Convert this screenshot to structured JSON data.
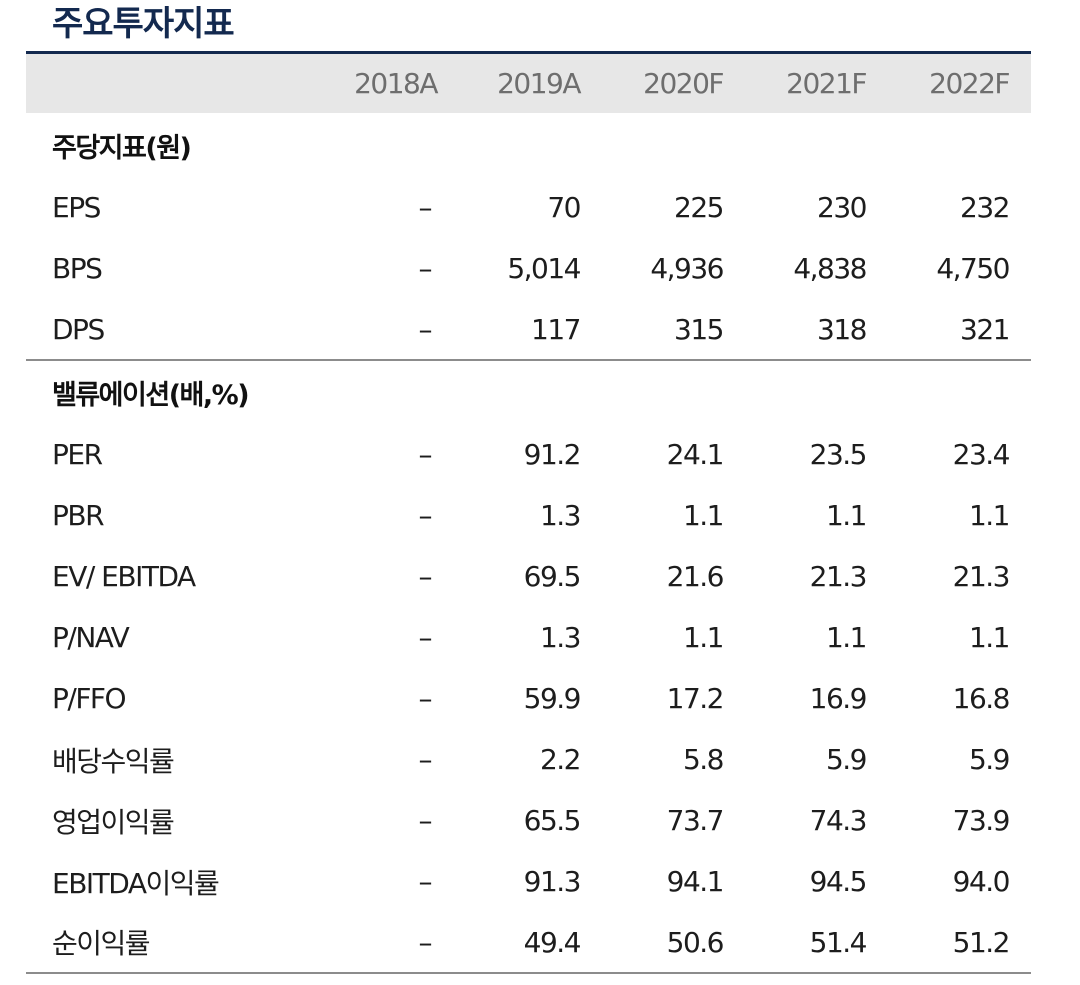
{
  "title": "주요투자지표",
  "columns": [
    "2018A",
    "2019A",
    "2020F",
    "2021F",
    "2022F"
  ],
  "sections": [
    {
      "heading": "주당지표(원)",
      "rows": [
        {
          "label": "EPS",
          "values": [
            "–",
            "70",
            "225",
            "230",
            "232"
          ]
        },
        {
          "label": "BPS",
          "values": [
            "–",
            "5,014",
            "4,936",
            "4,838",
            "4,750"
          ]
        },
        {
          "label": "DPS",
          "values": [
            "–",
            "117",
            "315",
            "318",
            "321"
          ]
        }
      ]
    },
    {
      "heading": "밸류에이션(배,%)",
      "rows": [
        {
          "label": "PER",
          "values": [
            "–",
            "91.2",
            "24.1",
            "23.5",
            "23.4"
          ]
        },
        {
          "label": "PBR",
          "values": [
            "–",
            "1.3",
            "1.1",
            "1.1",
            "1.1"
          ]
        },
        {
          "label": "EV/ EBITDA",
          "values": [
            "–",
            "69.5",
            "21.6",
            "21.3",
            "21.3"
          ]
        },
        {
          "label": "P/NAV",
          "values": [
            "–",
            "1.3",
            "1.1",
            "1.1",
            "1.1"
          ]
        },
        {
          "label": "P/FFO",
          "values": [
            "–",
            "59.9",
            "17.2",
            "16.9",
            "16.8"
          ]
        },
        {
          "label": "배당수익률",
          "values": [
            "–",
            "2.2",
            "5.8",
            "5.9",
            "5.9"
          ]
        },
        {
          "label": "영업이익률",
          "values": [
            "–",
            "65.5",
            "73.7",
            "74.3",
            "73.9"
          ]
        },
        {
          "label": "EBITDA이익률",
          "values": [
            "–",
            "91.3",
            "94.1",
            "94.5",
            "94.0"
          ]
        },
        {
          "label": "순이익률",
          "values": [
            "–",
            "49.4",
            "50.6",
            "51.4",
            "51.2"
          ]
        }
      ]
    }
  ]
}
